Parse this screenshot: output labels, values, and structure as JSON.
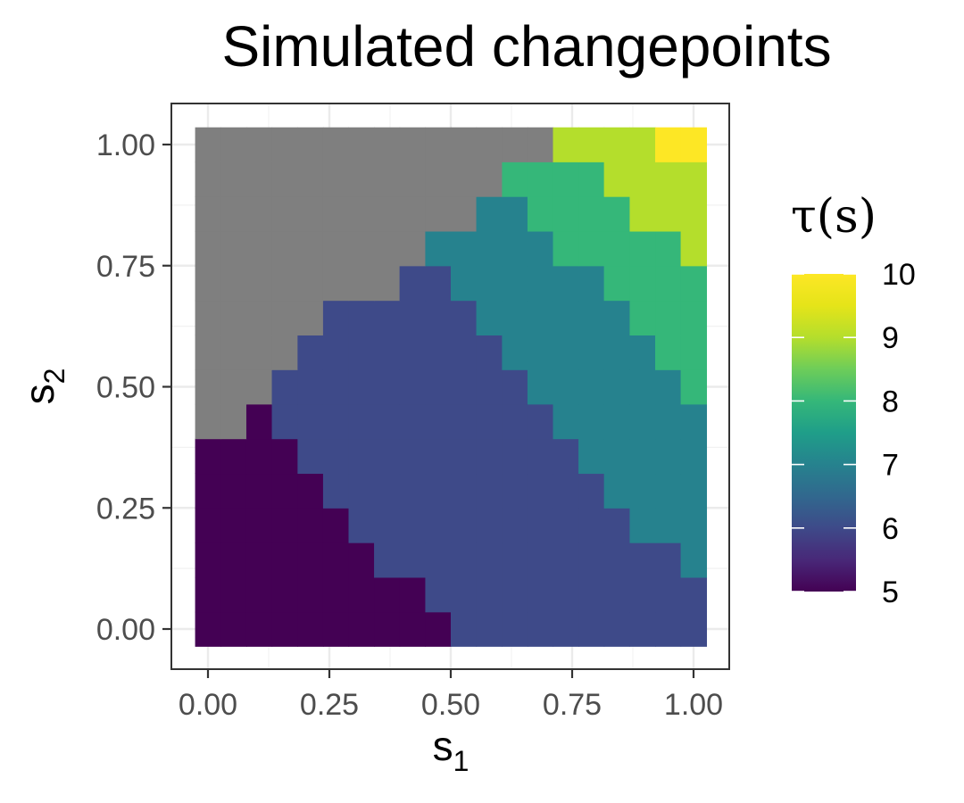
{
  "chart_data": {
    "type": "heatmap",
    "title": "Simulated changepoints",
    "xlabel": "s",
    "xlabel_sub": "1",
    "ylabel": "s",
    "ylabel_sub": "2",
    "xlim": [
      0,
      1
    ],
    "ylim": [
      0,
      1
    ],
    "x_ticks": [
      "0.00",
      "0.25",
      "0.50",
      "0.75",
      "1.00"
    ],
    "y_ticks": [
      "0.00",
      "0.25",
      "0.50",
      "0.75",
      "1.00"
    ],
    "grid": true,
    "x_centers": [
      0.0,
      0.053,
      0.105,
      0.158,
      0.211,
      0.263,
      0.316,
      0.368,
      0.421,
      0.474,
      0.526,
      0.579,
      0.632,
      0.684,
      0.737,
      0.789,
      0.842,
      0.895,
      0.947,
      1.0
    ],
    "y_centers": [
      0.0,
      0.071,
      0.143,
      0.214,
      0.286,
      0.357,
      0.429,
      0.5,
      0.571,
      0.643,
      0.714,
      0.786,
      0.857,
      0.929,
      1.0
    ],
    "values_rows_bottom_to_top": [
      [
        5,
        5,
        5,
        5,
        5,
        5,
        5,
        5,
        5,
        5,
        6,
        6,
        6,
        6,
        6,
        6,
        6,
        6,
        6,
        6
      ],
      [
        5,
        5,
        5,
        5,
        5,
        5,
        5,
        5,
        5,
        6,
        6,
        6,
        6,
        6,
        6,
        6,
        6,
        6,
        6,
        6
      ],
      [
        5,
        5,
        5,
        5,
        5,
        5,
        5,
        6,
        6,
        6,
        6,
        6,
        6,
        6,
        6,
        6,
        6,
        6,
        6,
        7
      ],
      [
        5,
        5,
        5,
        5,
        5,
        5,
        6,
        6,
        6,
        6,
        6,
        6,
        6,
        6,
        6,
        6,
        6,
        7,
        7,
        7
      ],
      [
        5,
        5,
        5,
        5,
        5,
        6,
        6,
        6,
        6,
        6,
        6,
        6,
        6,
        6,
        6,
        6,
        7,
        7,
        7,
        7
      ],
      [
        5,
        5,
        5,
        5,
        6,
        6,
        6,
        6,
        6,
        6,
        6,
        6,
        6,
        6,
        6,
        7,
        7,
        7,
        7,
        7
      ],
      [
        null,
        null,
        5,
        6,
        6,
        6,
        6,
        6,
        6,
        6,
        6,
        6,
        6,
        6,
        7,
        7,
        7,
        7,
        7,
        7
      ],
      [
        null,
        null,
        null,
        6,
        6,
        6,
        6,
        6,
        6,
        6,
        6,
        6,
        6,
        7,
        7,
        7,
        7,
        7,
        7,
        8
      ],
      [
        null,
        null,
        null,
        null,
        6,
        6,
        6,
        6,
        6,
        6,
        6,
        6,
        7,
        7,
        7,
        7,
        7,
        7,
        8,
        8
      ],
      [
        null,
        null,
        null,
        null,
        null,
        6,
        6,
        6,
        6,
        6,
        6,
        7,
        7,
        7,
        7,
        7,
        7,
        8,
        8,
        8
      ],
      [
        null,
        null,
        null,
        null,
        null,
        null,
        null,
        null,
        6,
        6,
        7,
        7,
        7,
        7,
        7,
        7,
        8,
        8,
        8,
        8
      ],
      [
        null,
        null,
        null,
        null,
        null,
        null,
        null,
        null,
        null,
        7,
        7,
        7,
        7,
        7,
        8,
        8,
        8,
        8,
        8,
        9
      ],
      [
        null,
        null,
        null,
        null,
        null,
        null,
        null,
        null,
        null,
        null,
        null,
        7,
        7,
        8,
        8,
        8,
        8,
        9,
        9,
        9
      ],
      [
        null,
        null,
        null,
        null,
        null,
        null,
        null,
        null,
        null,
        null,
        null,
        null,
        8,
        8,
        8,
        8,
        9,
        9,
        9,
        9
      ],
      [
        null,
        null,
        null,
        null,
        null,
        null,
        null,
        null,
        null,
        null,
        null,
        null,
        null,
        null,
        9,
        9,
        9,
        9,
        10,
        10
      ]
    ],
    "na_color": "#7f7f7f",
    "legend": {
      "title": "τ(s)",
      "placement": "right",
      "min": 5,
      "max": 10,
      "labels": [
        "10",
        "9",
        "8",
        "7",
        "6",
        "5"
      ],
      "colormap": "viridis"
    }
  }
}
